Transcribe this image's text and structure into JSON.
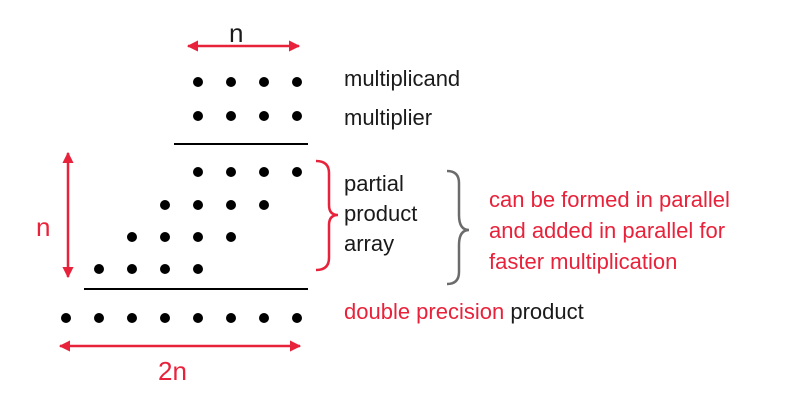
{
  "colors": {
    "accent": "#e8223a",
    "ink": "#000000",
    "brace": "#6b6b6b"
  },
  "dimension_labels": {
    "top_width": "n",
    "left_height": "n",
    "bottom_width": "2n"
  },
  "row_labels": {
    "multiplicand": "multiplicand",
    "multiplier": "multiplier"
  },
  "partial_block": {
    "lines": [
      "partial",
      "product",
      "array"
    ],
    "note_lines": [
      "can be formed in parallel",
      "and added in parallel for",
      "faster multiplication"
    ]
  },
  "result": {
    "prefix": "double precision",
    "suffix": " product"
  },
  "dot_rows": {
    "multiplicand": 4,
    "multiplier": 4,
    "partial_rows": [
      4,
      4,
      4,
      4
    ],
    "product": 8
  }
}
